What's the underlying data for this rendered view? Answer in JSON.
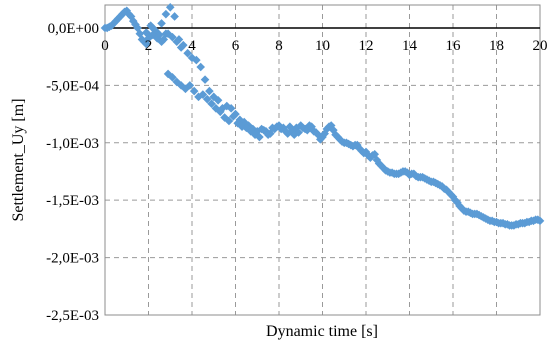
{
  "chart_data": {
    "type": "scatter",
    "xlabel": "Dynamic time [s]",
    "ylabel": "Settlement_Uy [m]",
    "xlim": [
      0,
      20
    ],
    "ylim": [
      -0.0025,
      0.0002
    ],
    "x_ticks": [
      0,
      2,
      4,
      6,
      8,
      10,
      12,
      14,
      16,
      18,
      20
    ],
    "x_tick_labels": [
      "0",
      "2",
      "4",
      "6",
      "8",
      "10",
      "12",
      "14",
      "16",
      "18",
      "20"
    ],
    "y_ticks": [
      0,
      -0.0005,
      -0.001,
      -0.0015,
      -0.002,
      -0.0025
    ],
    "y_tick_labels": [
      "0,0E+00",
      "-5,0E-04",
      "-1,0E-03",
      "-1,5E-03",
      "-2,0E-03",
      "-2,5E-03"
    ],
    "grid": true,
    "legend": "none",
    "marker": "diamond",
    "color": "#5b9bd5",
    "series": [
      {
        "points": [
          [
            0.0,
            0.0
          ],
          [
            0.2,
            1e-05
          ],
          [
            0.4,
            4e-05
          ],
          [
            0.6,
            8e-05
          ],
          [
            0.8,
            0.00012
          ],
          [
            1.0,
            0.00015
          ],
          [
            1.2,
            0.0001
          ],
          [
            1.4,
            3e-05
          ],
          [
            1.6,
            -5e-05
          ],
          [
            1.8,
            -0.00012
          ],
          [
            2.0,
            -6e-05
          ],
          [
            2.2,
            0.0
          ],
          [
            2.4,
            -4e-05
          ],
          [
            2.6,
            4e-05
          ],
          [
            2.8,
            0.00012
          ],
          [
            3.0,
            0.00018
          ],
          [
            3.2,
            0.0001
          ],
          [
            3.4,
            -0.0001
          ],
          [
            3.6,
            -0.00015
          ],
          [
            3.8,
            -0.00022
          ],
          [
            4.0,
            -0.00026
          ],
          [
            4.2,
            -0.00028
          ],
          [
            4.4,
            -0.00034
          ],
          [
            4.6,
            -0.00045
          ],
          [
            4.8,
            -0.00055
          ],
          [
            5.0,
            -0.0006
          ],
          [
            5.2,
            -0.00063
          ],
          [
            5.4,
            -0.0007
          ],
          [
            5.6,
            -0.00068
          ],
          [
            5.8,
            -0.0007
          ],
          [
            6.0,
            -0.00075
          ],
          [
            6.2,
            -0.0008
          ],
          [
            6.4,
            -0.00082
          ],
          [
            6.6,
            -0.00085
          ],
          [
            6.8,
            -0.00088
          ],
          [
            7.0,
            -0.0009
          ],
          [
            7.2,
            -0.00088
          ],
          [
            7.4,
            -0.0009
          ],
          [
            7.6,
            -0.00092
          ],
          [
            7.8,
            -0.00088
          ],
          [
            8.0,
            -0.00085
          ],
          [
            8.2,
            -0.00087
          ],
          [
            8.4,
            -0.00092
          ],
          [
            8.6,
            -0.0009
          ],
          [
            8.8,
            -0.00087
          ],
          [
            9.0,
            -0.00085
          ],
          [
            9.2,
            -0.00088
          ],
          [
            9.4,
            -0.00085
          ],
          [
            9.6,
            -0.0009
          ],
          [
            9.8,
            -0.00093
          ],
          [
            10.0,
            -0.00095
          ],
          [
            10.2,
            -0.00088
          ],
          [
            10.4,
            -0.00085
          ],
          [
            10.6,
            -0.00093
          ],
          [
            10.8,
            -0.00097
          ],
          [
            11.0,
            -0.001
          ],
          [
            11.2,
            -0.00101
          ],
          [
            11.4,
            -0.00103
          ],
          [
            11.6,
            -0.00102
          ],
          [
            11.8,
            -0.00107
          ],
          [
            12.0,
            -0.00108
          ],
          [
            12.2,
            -0.00113
          ],
          [
            12.4,
            -0.0011
          ],
          [
            12.6,
            -0.00118
          ],
          [
            12.8,
            -0.00122
          ],
          [
            13.0,
            -0.00125
          ],
          [
            13.2,
            -0.00126
          ],
          [
            13.4,
            -0.00127
          ],
          [
            13.6,
            -0.00126
          ],
          [
            13.8,
            -0.00125
          ],
          [
            14.0,
            -0.00128
          ],
          [
            14.2,
            -0.00127
          ],
          [
            14.4,
            -0.0013
          ],
          [
            14.6,
            -0.0013
          ],
          [
            14.8,
            -0.00132
          ],
          [
            15.0,
            -0.00134
          ],
          [
            15.2,
            -0.00135
          ],
          [
            15.4,
            -0.00137
          ],
          [
            15.6,
            -0.0014
          ],
          [
            15.8,
            -0.00143
          ],
          [
            16.0,
            -0.00147
          ],
          [
            16.2,
            -0.00152
          ],
          [
            16.4,
            -0.00157
          ],
          [
            16.6,
            -0.0016
          ],
          [
            16.8,
            -0.00161
          ],
          [
            17.0,
            -0.00162
          ],
          [
            17.2,
            -0.00163
          ],
          [
            17.4,
            -0.00165
          ],
          [
            17.6,
            -0.00167
          ],
          [
            17.8,
            -0.00168
          ],
          [
            18.0,
            -0.00169
          ],
          [
            18.2,
            -0.0017
          ],
          [
            18.4,
            -0.00171
          ],
          [
            18.6,
            -0.00172
          ],
          [
            18.8,
            -0.00172
          ],
          [
            19.0,
            -0.00171
          ],
          [
            19.2,
            -0.0017
          ],
          [
            19.4,
            -0.00169
          ],
          [
            19.6,
            -0.00168
          ],
          [
            19.8,
            -0.00167
          ],
          [
            20.0,
            -0.00168
          ],
          [
            0.1,
            0.0
          ],
          [
            0.3,
            2e-05
          ],
          [
            0.5,
            6e-05
          ],
          [
            0.7,
            0.0001
          ],
          [
            0.9,
            0.00014
          ],
          [
            1.1,
            0.00012
          ],
          [
            1.3,
            6e-05
          ],
          [
            1.5,
            0.0
          ],
          [
            1.7,
            -0.0001
          ],
          [
            1.9,
            -4e-05
          ],
          [
            2.1,
            2e-05
          ],
          [
            2.3,
            -2e-05
          ],
          [
            2.5,
            -6e-05
          ],
          [
            2.7,
            -0.0001
          ],
          [
            2.9,
            -5e-05
          ],
          [
            3.1,
            -8e-05
          ],
          [
            3.3,
            -0.00012
          ],
          [
            3.5,
            -0.00017
          ],
          [
            2.2,
            -6e-05
          ],
          [
            2.4,
            -9e-05
          ],
          [
            2.6,
            -0.00012
          ],
          [
            2.8,
            -5e-05
          ],
          [
            2.0,
            -9e-05
          ],
          [
            1.9,
            -0.00014
          ],
          [
            2.9,
            -0.0004
          ],
          [
            3.1,
            -0.00043
          ],
          [
            3.3,
            -0.00047
          ],
          [
            3.5,
            -0.0005
          ],
          [
            3.7,
            -0.00053
          ],
          [
            3.9,
            -0.0005
          ],
          [
            4.1,
            -0.00055
          ],
          [
            4.3,
            -0.0006
          ],
          [
            4.5,
            -0.00058
          ],
          [
            4.7,
            -0.00062
          ],
          [
            4.9,
            -0.00066
          ],
          [
            5.1,
            -0.0007
          ],
          [
            5.3,
            -0.00073
          ],
          [
            5.5,
            -0.00078
          ],
          [
            5.7,
            -0.00081
          ],
          [
            5.9,
            -0.00077
          ],
          [
            6.1,
            -0.00083
          ],
          [
            6.3,
            -0.00086
          ],
          [
            6.5,
            -0.00087
          ],
          [
            6.7,
            -0.0009
          ],
          [
            6.9,
            -0.00093
          ],
          [
            7.1,
            -0.00095
          ],
          [
            7.3,
            -0.00089
          ],
          [
            7.5,
            -0.00093
          ],
          [
            7.7,
            -0.00087
          ],
          [
            7.9,
            -0.00086
          ],
          [
            8.1,
            -0.00088
          ],
          [
            8.3,
            -0.0009
          ],
          [
            8.5,
            -0.00086
          ],
          [
            8.7,
            -0.00093
          ],
          [
            8.9,
            -0.00091
          ],
          [
            9.1,
            -0.00087
          ],
          [
            9.3,
            -0.00089
          ],
          [
            9.5,
            -0.00086
          ],
          [
            9.7,
            -0.00091
          ],
          [
            9.9,
            -0.00097
          ],
          [
            10.1,
            -0.00092
          ],
          [
            10.3,
            -0.00086
          ],
          [
            10.5,
            -0.00089
          ],
          [
            10.7,
            -0.00095
          ],
          [
            10.9,
            -0.00099
          ],
          [
            11.1,
            -0.001
          ],
          [
            11.3,
            -0.00102
          ],
          [
            11.5,
            -0.00102
          ],
          [
            11.7,
            -0.00105
          ],
          [
            11.9,
            -0.00109
          ],
          [
            12.1,
            -0.00111
          ],
          [
            12.3,
            -0.00111
          ],
          [
            12.5,
            -0.00115
          ],
          [
            12.7,
            -0.0012
          ],
          [
            12.9,
            -0.00124
          ],
          [
            13.1,
            -0.00126
          ],
          [
            13.3,
            -0.00127
          ],
          [
            13.5,
            -0.00127
          ],
          [
            13.7,
            -0.00125
          ],
          [
            13.9,
            -0.00126
          ],
          [
            14.1,
            -0.00127
          ],
          [
            14.3,
            -0.00129
          ],
          [
            14.5,
            -0.0013
          ],
          [
            14.7,
            -0.00131
          ],
          [
            14.9,
            -0.00133
          ],
          [
            15.1,
            -0.00134
          ],
          [
            15.3,
            -0.00136
          ],
          [
            15.5,
            -0.00138
          ],
          [
            15.7,
            -0.00141
          ],
          [
            15.9,
            -0.00145
          ],
          [
            16.1,
            -0.0015
          ],
          [
            16.3,
            -0.00155
          ],
          [
            16.5,
            -0.00159
          ],
          [
            16.7,
            -0.0016
          ],
          [
            16.9,
            -0.00162
          ],
          [
            17.1,
            -0.00162
          ],
          [
            17.3,
            -0.00164
          ],
          [
            17.5,
            -0.00166
          ],
          [
            17.7,
            -0.00168
          ],
          [
            17.9,
            -0.00169
          ],
          [
            18.1,
            -0.0017
          ],
          [
            18.3,
            -0.0017
          ],
          [
            18.5,
            -0.00171
          ],
          [
            18.7,
            -0.00172
          ],
          [
            18.9,
            -0.00171
          ],
          [
            19.1,
            -0.0017
          ],
          [
            19.3,
            -0.0017
          ],
          [
            19.5,
            -0.00169
          ],
          [
            19.7,
            -0.00168
          ],
          [
            19.9,
            -0.00167
          ]
        ]
      }
    ]
  }
}
